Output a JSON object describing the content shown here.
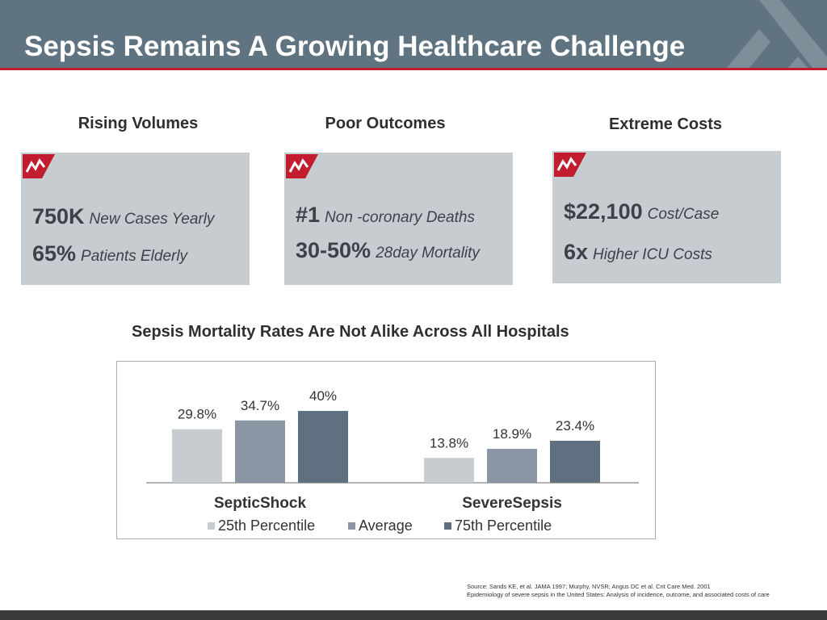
{
  "slide": {
    "title": "Sepsis Remains A Growing Healthcare Challenge",
    "colors": {
      "header": "#5f7480",
      "accent_red": "#c21d2e",
      "box_fill": "#c7ccd1",
      "series_25th": "#c7ccd1",
      "series_avg": "#8a96a3",
      "series_75th": "#5f7080"
    }
  },
  "columns": [
    {
      "heading": "Rising Volumes",
      "icon": "trend-flag-icon",
      "stats": [
        {
          "value": "750K",
          "label": "New Cases Yearly"
        },
        {
          "value": "65%",
          "label": "Patients Elderly"
        }
      ]
    },
    {
      "heading": "Poor Outcomes",
      "icon": "trend-flag-icon",
      "stats": [
        {
          "value": "#1",
          "label": "Non -coronary Deaths"
        },
        {
          "value": "30-50%",
          "label": "28day Mortality"
        }
      ]
    },
    {
      "heading": "Extreme Costs",
      "icon": "trend-flag-icon",
      "stats": [
        {
          "value": "$22,100",
          "label": "Cost/Case"
        },
        {
          "value": "6x",
          "label": "Higher ICU Costs"
        }
      ]
    }
  ],
  "chart_data": {
    "type": "bar",
    "title": "Sepsis Mortality Rates Are Not Alike Across All Hospitals",
    "categories": [
      "SepticShock",
      "SevereSepsis"
    ],
    "series": [
      {
        "name": "25th Percentile",
        "values": [
          29.8,
          13.8
        ],
        "labels": [
          "29.8%",
          "13.8%"
        ]
      },
      {
        "name": "Average",
        "values": [
          34.7,
          18.9
        ],
        "labels": [
          "34.7%",
          "18.9%"
        ]
      },
      {
        "name": "75th Percentile",
        "values": [
          40,
          23.4
        ],
        "labels": [
          "40%",
          "23.4%"
        ]
      }
    ],
    "unit": "%",
    "ylim": [
      0,
      40
    ],
    "grid": false,
    "legend": "bottom"
  },
  "source": {
    "line1": "Source: Sands KE, et al. JAMA 1997; Murphy, NVSR;  Angus DC et al. Crit Care Med. 2001",
    "line2": "Epidemiology of severe sepsis in the United States: Analysis of incidence, outcome, and associated costs of care"
  }
}
